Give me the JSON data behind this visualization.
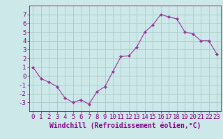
{
  "x": [
    0,
    1,
    2,
    3,
    4,
    5,
    6,
    7,
    8,
    9,
    10,
    11,
    12,
    13,
    14,
    15,
    16,
    17,
    18,
    19,
    20,
    21,
    22,
    23
  ],
  "y": [
    1.0,
    -0.3,
    -0.7,
    -1.2,
    -2.5,
    -3.0,
    -2.7,
    -3.2,
    -1.8,
    -1.2,
    0.5,
    2.2,
    2.3,
    3.3,
    5.0,
    5.8,
    7.0,
    6.7,
    6.5,
    5.0,
    4.8,
    4.0,
    4.0,
    2.5
  ],
  "line_color": "#993399",
  "marker": "D",
  "marker_size": 2.0,
  "xlabel": "Windchill (Refroidissement éolien,°C)",
  "ylim": [
    -4,
    8
  ],
  "xlim": [
    -0.5,
    23.5
  ],
  "yticks": [
    -3,
    -2,
    -1,
    0,
    1,
    2,
    3,
    4,
    5,
    6,
    7
  ],
  "xticks": [
    0,
    1,
    2,
    3,
    4,
    5,
    6,
    7,
    8,
    9,
    10,
    11,
    12,
    13,
    14,
    15,
    16,
    17,
    18,
    19,
    20,
    21,
    22,
    23
  ],
  "background_color": "#cce8e8",
  "grid_color": "#aacccc",
  "label_color": "#880088",
  "tick_fontsize": 6.5,
  "xlabel_fontsize": 7.0
}
